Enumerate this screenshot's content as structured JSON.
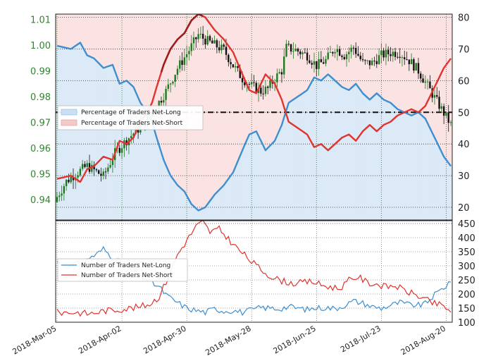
{
  "colors": {
    "long": "#3f8fd0",
    "short": "#e0342f",
    "short_dark": "#9c1f1f",
    "candle_up": "#1f7a1f",
    "candle_down": "#111111",
    "price_ticks": "#2b8a2b",
    "long_fill": "#dce9f6",
    "short_fill": "#fbe3e3",
    "grid": "#2e8b2e"
  },
  "chart_data": [
    {
      "type": "candlestick+line",
      "price_axis": {
        "ticks": [
          "1.01",
          "1.00",
          "0.99",
          "0.98",
          "0.97",
          "0.96",
          "0.95",
          "0.94"
        ],
        "min": 0.932,
        "max": 1.012
      },
      "percent_axis": {
        "ticks": [
          "80",
          "70",
          "60",
          "50",
          "40",
          "30",
          "20"
        ],
        "min": 16,
        "max": 81
      },
      "reference_line": 50,
      "legend": [
        {
          "label": "Percentage of Traders Net-Long",
          "color": "long"
        },
        {
          "label": "Percentage of Traders Net-Short",
          "color": "short"
        }
      ],
      "price_anchors": [
        [
          0,
          0.941
        ],
        [
          4,
          0.947
        ],
        [
          8,
          0.95
        ],
        [
          13,
          0.953
        ],
        [
          20,
          0.949
        ],
        [
          25,
          0.958
        ],
        [
          31,
          0.964
        ],
        [
          37,
          0.969
        ],
        [
          42,
          0.975
        ],
        [
          47,
          0.982
        ],
        [
          52,
          0.991
        ],
        [
          57,
          0.998
        ],
        [
          61,
          1.004
        ],
        [
          64,
          1.002
        ],
        [
          68,
          1.0
        ],
        [
          72,
          0.998
        ],
        [
          76,
          0.992
        ],
        [
          80,
          0.987
        ],
        [
          84,
          0.984
        ],
        [
          88,
          0.982
        ],
        [
          91,
          0.983
        ],
        [
          94,
          0.987
        ],
        [
          97,
          0.99
        ],
        [
          99,
          0.999
        ],
        [
          103,
          0.998
        ],
        [
          108,
          0.996
        ],
        [
          112,
          0.992
        ],
        [
          116,
          0.994
        ],
        [
          120,
          0.999
        ],
        [
          124,
          0.996
        ],
        [
          128,
          0.999
        ],
        [
          132,
          0.993
        ],
        [
          136,
          0.993
        ],
        [
          140,
          0.996
        ],
        [
          144,
          0.997
        ],
        [
          148,
          0.997
        ],
        [
          152,
          0.994
        ],
        [
          156,
          0.99
        ],
        [
          160,
          0.984
        ],
        [
          164,
          0.978
        ],
        [
          168,
          0.972
        ],
        [
          170,
          0.969
        ]
      ],
      "long_pct_anchors": [
        [
          0,
          71
        ],
        [
          6,
          70
        ],
        [
          10,
          72
        ],
        [
          13,
          68
        ],
        [
          16,
          67
        ],
        [
          20,
          64
        ],
        [
          24,
          65
        ],
        [
          27,
          59
        ],
        [
          30,
          60
        ],
        [
          33,
          58
        ],
        [
          36,
          53
        ],
        [
          39,
          50
        ],
        [
          41,
          47
        ],
        [
          43,
          42
        ],
        [
          46,
          35
        ],
        [
          49,
          30
        ],
        [
          52,
          27
        ],
        [
          55,
          25
        ],
        [
          58,
          21
        ],
        [
          61,
          19
        ],
        [
          64,
          20
        ],
        [
          68,
          24
        ],
        [
          72,
          27
        ],
        [
          76,
          31
        ],
        [
          80,
          38
        ],
        [
          83,
          43
        ],
        [
          86,
          44
        ],
        [
          90,
          38
        ],
        [
          94,
          41
        ],
        [
          97,
          46
        ],
        [
          100,
          53
        ],
        [
          104,
          55
        ],
        [
          108,
          57
        ],
        [
          111,
          61
        ],
        [
          114,
          60
        ],
        [
          117,
          62
        ],
        [
          120,
          60
        ],
        [
          123,
          58
        ],
        [
          126,
          57
        ],
        [
          129,
          59
        ],
        [
          132,
          56
        ],
        [
          135,
          54
        ],
        [
          138,
          56
        ],
        [
          141,
          54
        ],
        [
          144,
          53
        ],
        [
          147,
          51
        ],
        [
          150,
          50
        ],
        [
          153,
          49
        ],
        [
          156,
          50
        ],
        [
          159,
          48
        ],
        [
          161,
          45
        ],
        [
          163,
          42
        ],
        [
          165,
          39
        ],
        [
          167,
          36
        ],
        [
          169,
          34
        ],
        [
          170,
          33
        ]
      ],
      "dark_short_ranges": [
        [
          45,
          63
        ]
      ]
    },
    {
      "type": "line",
      "axis": {
        "ticks": [
          "450",
          "400",
          "350",
          "300",
          "250",
          "200",
          "150",
          "100"
        ],
        "min": 100,
        "max": 460
      },
      "legend": [
        {
          "label": "Number of Traders Net-Long",
          "color": "long"
        },
        {
          "label": "Number of Traders Net-Short",
          "color": "short"
        }
      ],
      "x_labels": [
        "2018-Mar-05",
        "2018-Apr-02",
        "2018-Apr-30",
        "2018-May-28",
        "2018-Jun-25",
        "2018-Jul-23",
        "2018-Aug-20"
      ],
      "x_count": 171,
      "long_anchors": [
        [
          0,
          315
        ],
        [
          4,
          300
        ],
        [
          8,
          305
        ],
        [
          12,
          310
        ],
        [
          14,
          330
        ],
        [
          17,
          340
        ],
        [
          20,
          360
        ],
        [
          24,
          330
        ],
        [
          28,
          308
        ],
        [
          32,
          285
        ],
        [
          36,
          262
        ],
        [
          40,
          245
        ],
        [
          44,
          225
        ],
        [
          48,
          190
        ],
        [
          52,
          170
        ],
        [
          56,
          150
        ],
        [
          60,
          142
        ],
        [
          64,
          135
        ],
        [
          68,
          148
        ],
        [
          72,
          140
        ],
        [
          76,
          142
        ],
        [
          80,
          135
        ],
        [
          84,
          143
        ],
        [
          88,
          152
        ],
        [
          92,
          150
        ],
        [
          96,
          148
        ],
        [
          100,
          155
        ],
        [
          104,
          150
        ],
        [
          108,
          145
        ],
        [
          112,
          150
        ],
        [
          116,
          152
        ],
        [
          120,
          148
        ],
        [
          124,
          160
        ],
        [
          128,
          175
        ],
        [
          132,
          168
        ],
        [
          136,
          155
        ],
        [
          140,
          150
        ],
        [
          144,
          160
        ],
        [
          148,
          170
        ],
        [
          152,
          162
        ],
        [
          156,
          160
        ],
        [
          159,
          165
        ],
        [
          162,
          190
        ],
        [
          165,
          210
        ],
        [
          168,
          230
        ],
        [
          170,
          250
        ]
      ],
      "short_anchors": [
        [
          0,
          135
        ],
        [
          8,
          135
        ],
        [
          14,
          130
        ],
        [
          20,
          140
        ],
        [
          26,
          145
        ],
        [
          32,
          150
        ],
        [
          36,
          155
        ],
        [
          40,
          165
        ],
        [
          44,
          190
        ],
        [
          48,
          260
        ],
        [
          52,
          340
        ],
        [
          56,
          390
        ],
        [
          60,
          440
        ],
        [
          63,
          455
        ],
        [
          66,
          420
        ],
        [
          70,
          430
        ],
        [
          74,
          395
        ],
        [
          78,
          360
        ],
        [
          82,
          330
        ],
        [
          86,
          300
        ],
        [
          90,
          275
        ],
        [
          94,
          255
        ],
        [
          98,
          245
        ],
        [
          102,
          238
        ],
        [
          106,
          240
        ],
        [
          110,
          245
        ],
        [
          114,
          232
        ],
        [
          118,
          225
        ],
        [
          122,
          220
        ],
        [
          126,
          248
        ],
        [
          130,
          262
        ],
        [
          134,
          240
        ],
        [
          138,
          235
        ],
        [
          142,
          225
        ],
        [
          146,
          230
        ],
        [
          150,
          212
        ],
        [
          154,
          200
        ],
        [
          158,
          185
        ],
        [
          162,
          168
        ],
        [
          166,
          160
        ],
        [
          170,
          140
        ]
      ]
    }
  ]
}
